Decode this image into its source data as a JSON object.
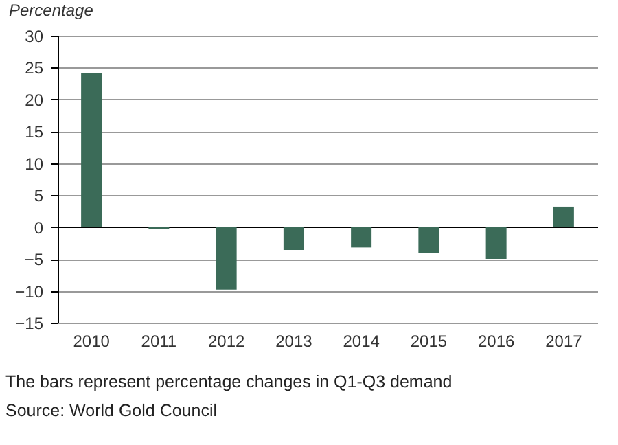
{
  "chart_data": {
    "type": "bar",
    "ylabel": "Percentage",
    "categories": [
      "2010",
      "2011",
      "2012",
      "2013",
      "2014",
      "2015",
      "2016",
      "2017"
    ],
    "values": [
      24.2,
      -0.3,
      -9.8,
      -3.6,
      -3.2,
      -4.1,
      -5,
      3.2
    ],
    "color": "#3b6b58",
    "ylim": [
      -15,
      30
    ],
    "yticks": [
      -15,
      -10,
      -5,
      0,
      5,
      10,
      15,
      20,
      25,
      30
    ],
    "grid": "y",
    "annotations": [
      "The bars represent percentage changes in Q1-Q3 demand",
      "Source: World Gold Council"
    ]
  }
}
